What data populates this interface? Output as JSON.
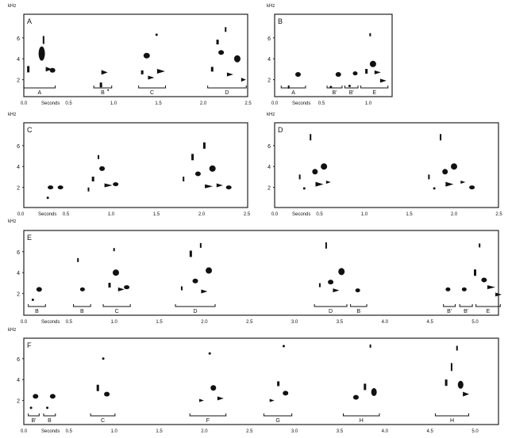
{
  "unit_khz": "kHz",
  "unit_seconds": "Seconds",
  "colors": {
    "ink": "#111111",
    "frame": "#222222",
    "background": "#ffffff"
  },
  "panels": [
    {
      "id": "A",
      "letter": "A",
      "yticks": [
        "2",
        "4",
        "6"
      ],
      "xticks": [
        "0.0",
        "0.5",
        "1.0",
        "1.5",
        "2.0",
        "2.5"
      ],
      "segments": [
        {
          "label": "A",
          "t0": 0.0,
          "t1": 0.35
        },
        {
          "label": "B",
          "t0": 0.78,
          "t1": 0.98
        },
        {
          "label": "C",
          "t0": 1.28,
          "t1": 1.58
        },
        {
          "label": "D",
          "t0": 2.05,
          "t1": 2.48
        }
      ]
    },
    {
      "id": "B",
      "letter": "B",
      "yticks": [
        "2",
        "4",
        "6"
      ],
      "xticks": [
        "0.0",
        "0.5",
        "1.0"
      ],
      "segments": [
        {
          "label": "A",
          "t0": 0.07,
          "t1": 0.33
        },
        {
          "label": "B'",
          "t0": 0.56,
          "t1": 0.72
        },
        {
          "label": "B'",
          "t0": 0.75,
          "t1": 0.89
        },
        {
          "label": "E",
          "t0": 0.92,
          "t1": 1.21
        }
      ]
    },
    {
      "id": "C",
      "letter": "C",
      "yticks": [
        "2",
        "4",
        "6"
      ],
      "xticks": [
        "0.0",
        "0.5",
        "1.0",
        "1.5",
        "2.0",
        "2.5"
      ],
      "segments": []
    },
    {
      "id": "D",
      "letter": "D",
      "yticks": [
        "2",
        "4",
        "6"
      ],
      "xticks": [
        "0.0",
        "0.5",
        "1.0",
        "1.5",
        "2.0",
        "2.5"
      ],
      "segments": []
    },
    {
      "id": "E",
      "letter": "E",
      "yticks": [
        "2",
        "4",
        "6"
      ],
      "xticks": [
        "0.0",
        "0.5",
        "1.0",
        "1.5",
        "2.0",
        "2.5",
        "3.0",
        "3.5",
        "4.0",
        "4.5",
        "5.0"
      ],
      "segments": [
        {
          "label": "B",
          "t0": 0.05,
          "t1": 0.24
        },
        {
          "label": "B",
          "t0": 0.55,
          "t1": 0.74
        },
        {
          "label": "C",
          "t0": 0.88,
          "t1": 1.18
        },
        {
          "label": "D",
          "t0": 1.68,
          "t1": 2.12
        },
        {
          "label": "D",
          "t0": 3.22,
          "t1": 3.58
        },
        {
          "label": "B",
          "t0": 3.62,
          "t1": 3.8
        },
        {
          "label": "B'",
          "t0": 4.65,
          "t1": 4.78
        },
        {
          "label": "B'",
          "t0": 4.83,
          "t1": 4.97
        },
        {
          "label": "E",
          "t0": 5.01,
          "t1": 5.28
        }
      ]
    },
    {
      "id": "F",
      "letter": "F",
      "yticks": [
        "2",
        "4",
        "6"
      ],
      "xticks": [
        "0.0",
        "0.5",
        "1.0",
        "1.5",
        "2.0",
        "2.5",
        "3.0",
        "3.5",
        "4.0",
        "4.5",
        "5.0"
      ],
      "segments": [
        {
          "label": "B'",
          "t0": 0.05,
          "t1": 0.17
        },
        {
          "label": "B",
          "t0": 0.22,
          "t1": 0.35
        },
        {
          "label": "C",
          "t0": 0.74,
          "t1": 1.01
        },
        {
          "label": "F",
          "t0": 1.84,
          "t1": 2.24
        },
        {
          "label": "G",
          "t0": 2.66,
          "t1": 2.97
        },
        {
          "label": "H",
          "t0": 3.54,
          "t1": 3.94
        },
        {
          "label": "H",
          "t0": 4.56,
          "t1": 4.93
        }
      ]
    }
  ]
}
